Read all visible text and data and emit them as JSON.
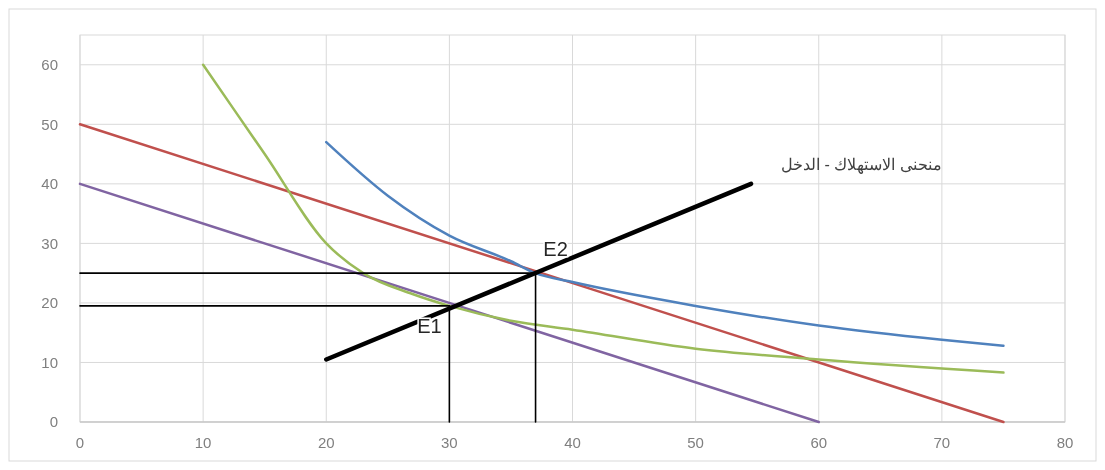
{
  "chart_data": {
    "type": "line",
    "xlim": [
      0,
      80
    ],
    "ylim": [
      0,
      65
    ],
    "xticks": [
      0,
      10,
      20,
      30,
      40,
      50,
      60,
      70,
      80
    ],
    "yticks": [
      0,
      10,
      20,
      30,
      40,
      50,
      60
    ],
    "grid": true,
    "series": [
      {
        "color": "#c0504d",
        "x": [
          0,
          75
        ],
        "values": [
          50,
          0
        ]
      },
      {
        "color": "#8064a2",
        "x": [
          0,
          60
        ],
        "values": [
          40,
          0
        ]
      },
      {
        "color": "#9bbb59",
        "x": [
          10,
          15,
          20,
          23,
          27,
          30,
          35,
          40,
          50,
          60,
          75
        ],
        "values": [
          60,
          45,
          30,
          25,
          21.5,
          19.5,
          17,
          15.5,
          12.3,
          10.5,
          8.3
        ]
      },
      {
        "color": "#4f81bd",
        "x": [
          20,
          25,
          30,
          35,
          37,
          40,
          50,
          60,
          70,
          75
        ],
        "values": [
          47,
          38,
          31.3,
          27,
          25,
          23.5,
          19.5,
          16.2,
          13.8,
          12.8
        ]
      },
      {
        "name": "منحنى الاستهلاك - الدخل",
        "color": "#000000",
        "x": [
          20,
          54.5
        ],
        "values": [
          10.5,
          40
        ]
      },
      {
        "color": "#000000",
        "x": [
          0,
          37
        ],
        "values": [
          25,
          25
        ]
      },
      {
        "color": "#000000",
        "x": [
          0,
          30
        ],
        "values": [
          19.5,
          19.5
        ]
      },
      {
        "color": "#000000",
        "x": [
          30,
          30
        ],
        "values": [
          0,
          19.5
        ]
      },
      {
        "color": "#000000",
        "x": [
          37,
          37
        ],
        "values": [
          0,
          25
        ]
      }
    ],
    "annotations": [
      {
        "text": "E1",
        "x": 30,
        "y": 19.5
      },
      {
        "text": "E2",
        "x": 37,
        "y": 25
      }
    ]
  }
}
